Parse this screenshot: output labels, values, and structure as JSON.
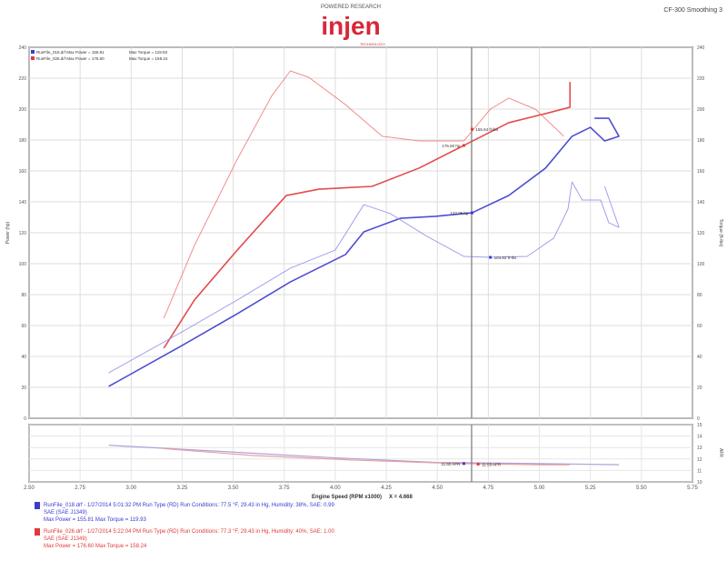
{
  "header": {
    "logo_text": "injen",
    "logo_subtitle": "POWERED RESEARCH",
    "logo_tagline": "TECHNOLOGY",
    "top_right": "CF-300 Smoothing 3"
  },
  "chart_data": {
    "type": "line",
    "xlabel": "Engine Speed (RPM x1000)",
    "xlabel_suffix": "X = 4.668",
    "ylabel_left": "Power (hp)",
    "ylabel_right": "Torque (ft-lbs)",
    "ylabel_lower_right": "AFR",
    "xlim": [
      2.5,
      5.75
    ],
    "ylim": [
      0,
      240
    ],
    "x_ticks": [
      "2.50",
      "2.75",
      "3.00",
      "3.25",
      "3.50",
      "3.75",
      "4.00",
      "4.25",
      "4.50",
      "4.75",
      "5.00",
      "5.25",
      "5.50",
      "5.75"
    ],
    "y_ticks_left": [
      "0",
      "20",
      "40",
      "60",
      "80",
      "100",
      "120",
      "140",
      "160",
      "180",
      "200",
      "220",
      "240"
    ],
    "y_ticks_right": [
      "0",
      "20",
      "40",
      "60",
      "80",
      "100",
      "120",
      "140",
      "160",
      "180",
      "200",
      "220",
      "240"
    ],
    "lower_ticks_right": [
      "10",
      "11",
      "12",
      "13",
      "14",
      "15"
    ],
    "grid": true,
    "cursor_x": 4.668,
    "legend_position": "top-left",
    "legend": [
      {
        "text": "RunFile_018.drf Max Power = 155.81",
        "torque": "Max Torque = 119.93",
        "color": "#3b3bd0"
      },
      {
        "text": "RunFile_026.drf Max Power = 176.60",
        "torque": "Max Torque = 158.24",
        "color": "#e03a3a"
      }
    ],
    "series": [
      {
        "color": "#e03a3a",
        "width": 1.6,
        "opacity": 0.9,
        "x": [
          3.16,
          3.31,
          3.52,
          3.76,
          3.92,
          4.18,
          4.41,
          4.63,
          4.85,
          5.03,
          5.15,
          5.15
        ],
        "y": [
          45.3,
          76.5,
          108.8,
          144.1,
          148.2,
          150,
          161.8,
          176.5,
          191.2,
          197.1,
          201.2,
          217.6
        ]
      },
      {
        "color": "#f07070",
        "width": 1,
        "opacity": 0.8,
        "x": [
          3.16,
          3.31,
          3.52,
          3.69,
          3.78,
          3.87,
          4.05,
          4.23,
          4.41,
          4.63,
          4.76,
          4.85,
          4.98,
          5.12
        ],
        "y": [
          64.7,
          111.8,
          167.6,
          208.8,
          224.7,
          220.6,
          202.9,
          182.4,
          179.4,
          179.4,
          200,
          207.1,
          200,
          182.4
        ]
      },
      {
        "color": "#3b3bd0",
        "width": 1.6,
        "opacity": 0.9,
        "x": [
          2.89,
          3.25,
          3.52,
          3.78,
          4.05,
          4.14,
          4.32,
          4.49,
          4.67,
          4.85,
          5.03,
          5.16,
          5.25,
          5.32,
          5.39,
          5.34,
          5.27
        ],
        "y": [
          20.6,
          47.1,
          67.6,
          88.2,
          105.9,
          120.6,
          129.4,
          130.6,
          132.9,
          144.1,
          161.8,
          182.4,
          188.2,
          179.4,
          182.4,
          194.1,
          194.1
        ]
      },
      {
        "color": "#8a8ae8",
        "width": 1,
        "opacity": 0.8,
        "x": [
          2.89,
          3.25,
          3.52,
          3.78,
          4.0,
          4.07,
          4.14,
          4.27,
          4.45,
          4.63,
          4.76,
          4.94,
          5.07,
          5.14,
          5.16,
          5.21,
          5.3,
          5.34,
          5.39,
          5.32
        ],
        "y": [
          29.4,
          55.9,
          76.5,
          97.1,
          108.8,
          123.5,
          138.2,
          132.4,
          117.6,
          104.7,
          104.1,
          104.7,
          116.5,
          135.3,
          152.9,
          141.2,
          141.2,
          126.5,
          123.5,
          150
        ]
      }
    ],
    "lower_series": [
      {
        "color": "#b0a0d8",
        "x": [
          2.89,
          3.5,
          4.0,
          4.5,
          5.0,
          5.39
        ],
        "y": [
          13.2,
          12.6,
          12.1,
          11.7,
          11.6,
          11.5
        ]
      },
      {
        "color": "#e8a0a0",
        "x": [
          3.16,
          3.6,
          4.1,
          4.6,
          5.0,
          5.15
        ],
        "y": [
          12.9,
          12.3,
          11.9,
          11.6,
          11.5,
          11.5
        ]
      }
    ],
    "annotations": [
      {
        "text": "176.60 hp",
        "x": 4.63,
        "y": 176.5,
        "color": "#e03a3a",
        "side": "left"
      },
      {
        "text": "155.64 ft-lbs",
        "x": 4.67,
        "y": 187,
        "color": "#e03a3a",
        "side": "right"
      },
      {
        "text": "133.05 hp",
        "x": 4.67,
        "y": 132.9,
        "color": "#3b3bd0",
        "side": "left"
      },
      {
        "text": "104.83 ft-lbs",
        "x": 4.76,
        "y": 104.1,
        "color": "#3b3bd0",
        "side": "right"
      },
      {
        "text": "11.60 AFR",
        "x": 4.63,
        "y": 11.6,
        "color": "#3b3bd0",
        "side": "left",
        "lower": true
      },
      {
        "text": "11.55 AFR",
        "x": 4.7,
        "y": 11.55,
        "color": "#e03a3a",
        "side": "right",
        "lower": true
      }
    ]
  },
  "footer": {
    "runs": [
      {
        "line1": "RunFile_018.drf - 1/27/2014 5:01:32 PM  Run Type (RD)  Run Conditions: 77.5 °F, 29.43 in Hg, Humidity: 38%, SAE: 0.99",
        "line2": "SAE (SAE J1349)",
        "line3": "Max Power = 155.81  Max Torque = 119.93",
        "color": "#3b3bd0"
      },
      {
        "line1": "RunFile_026.drf - 1/27/2014 5:22:04 PM  Run Type (RD)  Run Conditions: 77.3 °F, 29.43 in Hg, Humidity: 40%, SAE: 1.00",
        "line2": "SAE (SAE J1349)",
        "line3": "Max Power = 176.60  Max Torque = 158.24",
        "color": "#e03a3a"
      }
    ]
  }
}
